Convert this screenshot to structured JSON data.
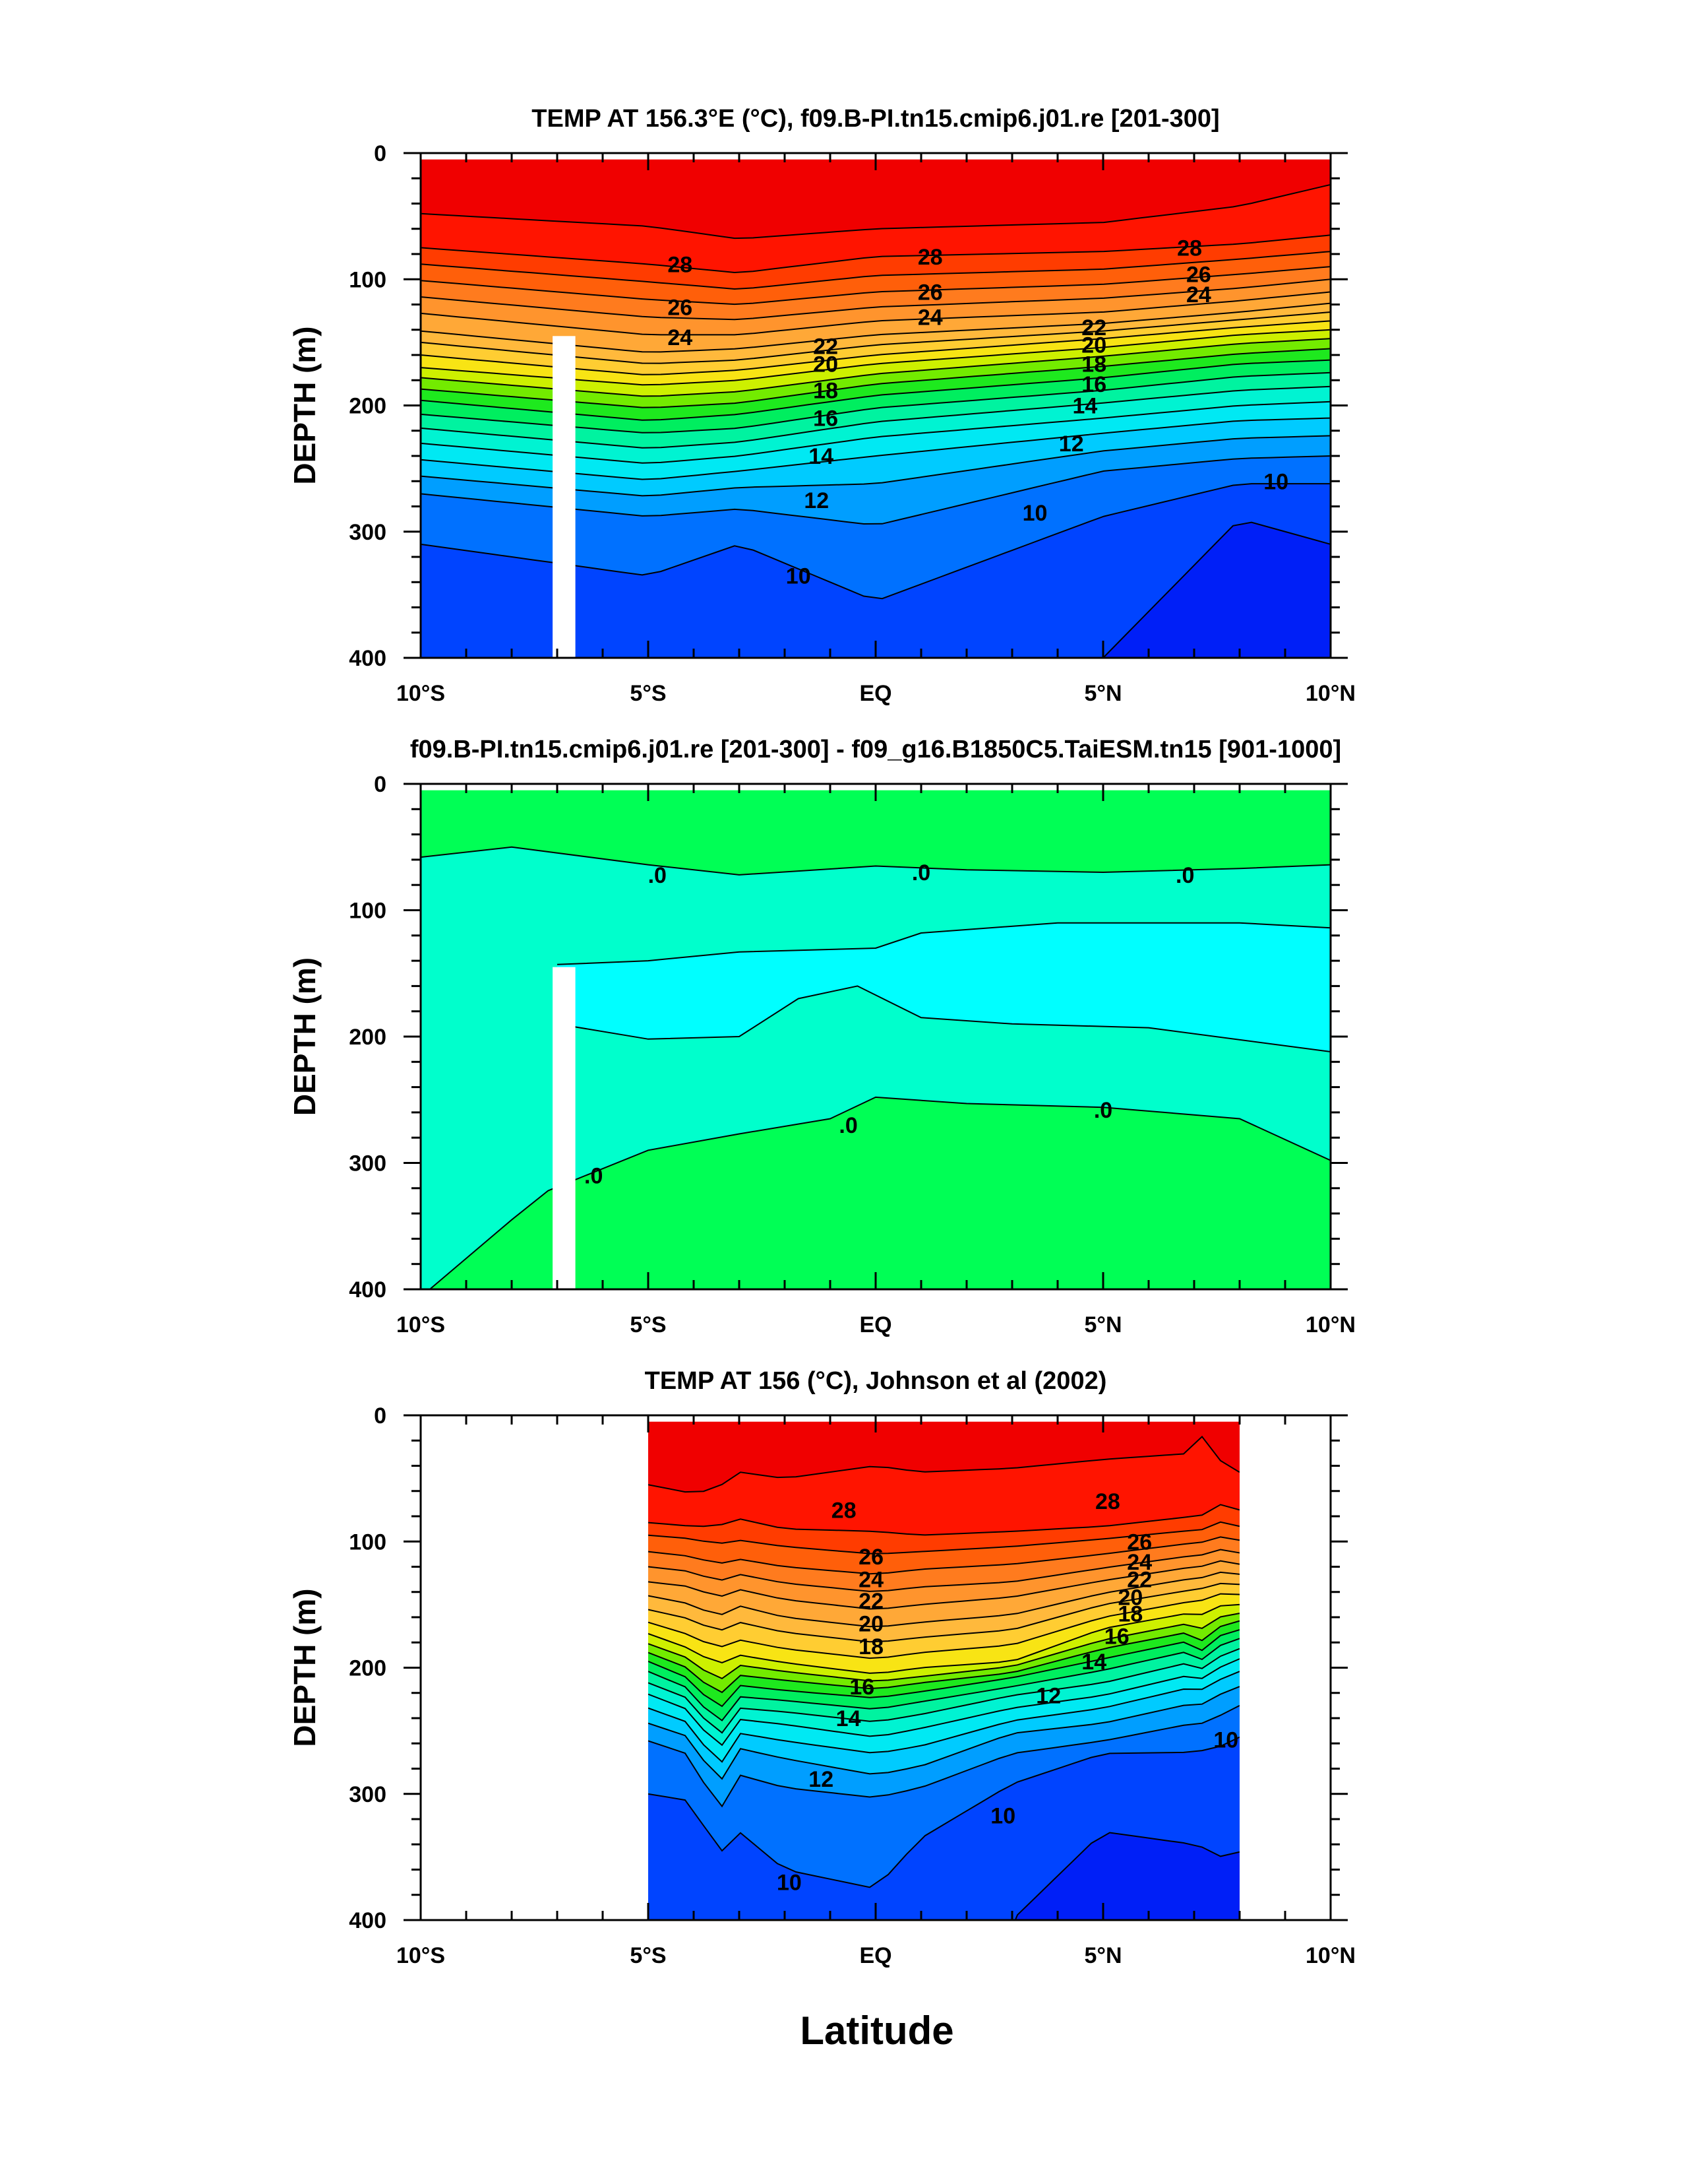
{
  "figure": {
    "xlabel": "Latitude"
  },
  "chart_data": [
    {
      "type": "heatmap",
      "title": "TEMP AT 156.3°E (°C), f09.B-PI.tn15.cmip6.j01.re [201-300]",
      "ylabel": "DEPTH (m)",
      "xlabel": "Latitude",
      "xlim": [
        -10,
        10
      ],
      "ylim": [
        400,
        0
      ],
      "x_ticks": [
        "10°S",
        "5°S",
        "EQ",
        "5°N",
        "10°N"
      ],
      "y_ticks": [
        "0",
        "100",
        "200",
        "300",
        "400"
      ],
      "missing_column": {
        "x_from": -7.1,
        "x_to": -6.6,
        "depth_from": 145,
        "depth_to": 400
      },
      "contour_interval": 1,
      "latitudes": [
        -10,
        -5,
        -3,
        0,
        5,
        8,
        10
      ],
      "isotherm_depth_m": {
        "29": [
          48,
          58,
          68,
          60,
          55,
          42,
          25
        ],
        "28": [
          75,
          88,
          95,
          82,
          78,
          72,
          65
        ],
        "27": [
          88,
          102,
          108,
          97,
          92,
          84,
          78
        ],
        "26": [
          101,
          116,
          120,
          110,
          104,
          96,
          90
        ],
        "25": [
          114,
          130,
          132,
          122,
          115,
          107,
          100
        ],
        "24": [
          127,
          144,
          144,
          133,
          126,
          117,
          110
        ],
        "23": [
          141,
          158,
          155,
          144,
          135,
          126,
          119
        ],
        "22": [
          150,
          167,
          164,
          152,
          141,
          132,
          126
        ],
        "21": [
          160,
          176,
          172,
          160,
          147,
          138,
          133
        ],
        "20": [
          170,
          184,
          180,
          167,
          154,
          144,
          140
        ],
        "19": [
          178,
          193,
          189,
          175,
          161,
          151,
          147
        ],
        "18": [
          187,
          202,
          198,
          183,
          169,
          159,
          155
        ],
        "17": [
          196,
          212,
          207,
          192,
          178,
          167,
          164
        ],
        "16": [
          207,
          222,
          218,
          202,
          188,
          177,
          174
        ],
        "15": [
          218,
          234,
          229,
          213,
          198,
          188,
          185
        ],
        "14": [
          230,
          246,
          240,
          225,
          210,
          200,
          197
        ],
        "13": [
          243,
          259,
          252,
          240,
          222,
          212,
          210
        ],
        "12": [
          256,
          272,
          265,
          262,
          236,
          226,
          224
        ],
        "11": [
          270,
          288,
          282,
          295,
          252,
          242,
          240
        ],
        "10": [
          310,
          335,
          310,
          355,
          288,
          262,
          262
        ],
        "9": [
          999,
          999,
          999,
          999,
          400,
          290,
          310
        ]
      },
      "contour_labels": [
        {
          "text": "28",
          "lat": -4.3,
          "depth": 88
        },
        {
          "text": "28",
          "lat": 1.2,
          "depth": 82
        },
        {
          "text": "28",
          "lat": 6.9,
          "depth": 75
        },
        {
          "text": "26",
          "lat": -4.3,
          "depth": 122
        },
        {
          "text": "26",
          "lat": 1.2,
          "depth": 110
        },
        {
          "text": "26",
          "lat": 7.1,
          "depth": 96
        },
        {
          "text": "24",
          "lat": -4.3,
          "depth": 146
        },
        {
          "text": "24",
          "lat": 1.2,
          "depth": 130
        },
        {
          "text": "24",
          "lat": 7.1,
          "depth": 112
        },
        {
          "text": "22",
          "lat": -1.1,
          "depth": 153
        },
        {
          "text": "22",
          "lat": 4.8,
          "depth": 138
        },
        {
          "text": "20",
          "lat": -1.1,
          "depth": 167
        },
        {
          "text": "20",
          "lat": 4.8,
          "depth": 152
        },
        {
          "text": "18",
          "lat": -1.1,
          "depth": 188
        },
        {
          "text": "18",
          "lat": 4.8,
          "depth": 167
        },
        {
          "text": "16",
          "lat": -1.1,
          "depth": 210
        },
        {
          "text": "16",
          "lat": 4.8,
          "depth": 183
        },
        {
          "text": "14",
          "lat": -1.2,
          "depth": 240
        },
        {
          "text": "14",
          "lat": 4.6,
          "depth": 200
        },
        {
          "text": "12",
          "lat": -1.3,
          "depth": 275
        },
        {
          "text": "12",
          "lat": 4.3,
          "depth": 230
        },
        {
          "text": "10",
          "lat": 8.8,
          "depth": 260
        },
        {
          "text": "10",
          "lat": 3.5,
          "depth": 285
        },
        {
          "text": "10",
          "lat": -1.7,
          "depth": 335
        }
      ]
    },
    {
      "type": "heatmap",
      "title": "f09.B-PI.tn15.cmip6.j01.re [201-300] - f09_g16.B1850C5.TaiESM.tn15 [901-1000]",
      "ylabel": "DEPTH (m)",
      "xlabel": "Latitude",
      "xlim": [
        -10,
        10
      ],
      "ylim": [
        400,
        0
      ],
      "x_ticks": [
        "10°S",
        "5°S",
        "EQ",
        "5°N",
        "10°N"
      ],
      "y_ticks": [
        "0",
        "100",
        "200",
        "300",
        "400"
      ],
      "missing_column": {
        "x_from": -7.1,
        "x_to": -6.6,
        "depth_from": 145,
        "depth_to": 400
      },
      "regions": [
        {
          "name": "near zero (upper)",
          "color": "#00ff55"
        },
        {
          "name": "small negative",
          "color": "#00ffcc"
        },
        {
          "name": "larger negative",
          "color": "#00ffff"
        },
        {
          "name": "near zero (lower)",
          "color": "#00ff55"
        }
      ],
      "contour_labels": [
        {
          "text": ".0",
          "lat": -4.8,
          "depth": 72
        },
        {
          "text": ".0",
          "lat": 1.0,
          "depth": 70
        },
        {
          "text": ".0",
          "lat": 6.8,
          "depth": 72
        },
        {
          "text": ".0",
          "lat": -6.2,
          "depth": 310
        },
        {
          "text": ".0",
          "lat": -0.6,
          "depth": 270
        },
        {
          "text": ".0",
          "lat": 5.0,
          "depth": 258
        }
      ]
    },
    {
      "type": "heatmap",
      "title": "TEMP AT 156 (°C), Johnson et al (2002)",
      "ylabel": "DEPTH (m)",
      "xlabel": "Latitude",
      "xlim": [
        -10,
        10
      ],
      "ylim": [
        400,
        0
      ],
      "data_lat_range": [
        -5,
        8
      ],
      "x_ticks": [
        "10°S",
        "5°S",
        "EQ",
        "5°N",
        "10°N"
      ],
      "y_ticks": [
        "0",
        "100",
        "200",
        "300",
        "400"
      ],
      "contour_interval": 1,
      "latitudes": [
        -5,
        -4,
        -3.5,
        -3,
        -2,
        0,
        1,
        3,
        5,
        7,
        7.4,
        7.6,
        8
      ],
      "isotherm_depth_m": {
        "29": [
          55,
          62,
          58,
          45,
          50,
          40,
          45,
          42,
          35,
          30,
          0,
          40,
          45
        ],
        "28": [
          85,
          88,
          88,
          82,
          90,
          92,
          95,
          92,
          88,
          80,
          78,
          70,
          75
        ],
        "27": [
          95,
          98,
          102,
          99,
          104,
          110,
          108,
          104,
          98,
          91,
          90,
          84,
          88
        ],
        "26": [
          108,
          112,
          118,
          114,
          120,
          126,
          122,
          118,
          110,
          101,
          100,
          96,
          99
        ],
        "25": [
          120,
          124,
          132,
          126,
          133,
          140,
          136,
          132,
          121,
          111,
          110,
          106,
          109
        ],
        "24": [
          132,
          136,
          145,
          138,
          146,
          154,
          150,
          144,
          131,
          120,
          119,
          115,
          118
        ],
        "23": [
          143,
          150,
          160,
          151,
          160,
          168,
          164,
          158,
          141,
          129,
          128,
          124,
          126
        ],
        "22": [
          154,
          162,
          172,
          164,
          172,
          180,
          176,
          170,
          150,
          138,
          136,
          133,
          134
        ],
        "21": [
          164,
          175,
          185,
          178,
          185,
          193,
          188,
          182,
          160,
          147,
          146,
          141,
          142
        ],
        "20": [
          173,
          186,
          198,
          190,
          196,
          205,
          200,
          195,
          169,
          156,
          160,
          150,
          150
        ],
        "19": [
          181,
          194,
          212,
          198,
          203,
          211,
          207,
          199,
          178,
          164,
          175,
          158,
          157
        ],
        "18": [
          188,
          202,
          224,
          206,
          210,
          217,
          212,
          204,
          185,
          171,
          188,
          165,
          163
        ],
        "17": [
          195,
          210,
          236,
          214,
          218,
          224,
          219,
          208,
          193,
          178,
          197,
          172,
          170
        ],
        "16": [
          203,
          218,
          248,
          223,
          226,
          233,
          227,
          215,
          202,
          186,
          203,
          180,
          177
        ],
        "15": [
          212,
          226,
          258,
          232,
          235,
          243,
          237,
          222,
          212,
          195,
          208,
          189,
          185
        ],
        "14": [
          221,
          235,
          268,
          241,
          245,
          255,
          248,
          232,
          222,
          205,
          213,
          198,
          193
        ],
        "13": [
          232,
          245,
          282,
          252,
          258,
          268,
          262,
          242,
          232,
          215,
          220,
          208,
          203
        ],
        "12": [
          244,
          256,
          296,
          264,
          272,
          285,
          278,
          252,
          244,
          228,
          230,
          220,
          215
        ],
        "11": [
          258,
          270,
          318,
          285,
          295,
          303,
          295,
          268,
          258,
          244,
          244,
          237,
          230
        ],
        "10": [
          300,
          306,
          350,
          330,
          360,
          375,
          335,
          292,
          268,
          267,
          264,
          262,
          255
        ],
        "9": [
          999,
          999,
          372,
          999,
          999,
          999,
          999,
          400,
          330,
          340,
          345,
          350,
          346
        ]
      },
      "contour_labels": [
        {
          "text": "28",
          "lat": -0.7,
          "depth": 75
        },
        {
          "text": "28",
          "lat": 5.1,
          "depth": 68
        },
        {
          "text": "26",
          "lat": -0.1,
          "depth": 112
        },
        {
          "text": "26",
          "lat": 5.8,
          "depth": 100
        },
        {
          "text": "24",
          "lat": -0.1,
          "depth": 130
        },
        {
          "text": "24",
          "lat": 5.8,
          "depth": 116
        },
        {
          "text": "22",
          "lat": -0.1,
          "depth": 147
        },
        {
          "text": "22",
          "lat": 5.8,
          "depth": 130
        },
        {
          "text": "20",
          "lat": -0.1,
          "depth": 165
        },
        {
          "text": "20",
          "lat": 5.6,
          "depth": 144
        },
        {
          "text": "18",
          "lat": -0.1,
          "depth": 183
        },
        {
          "text": "18",
          "lat": 5.6,
          "depth": 157
        },
        {
          "text": "16",
          "lat": -0.3,
          "depth": 215
        },
        {
          "text": "16",
          "lat": 5.3,
          "depth": 175
        },
        {
          "text": "14",
          "lat": -0.6,
          "depth": 240
        },
        {
          "text": "14",
          "lat": 4.8,
          "depth": 195
        },
        {
          "text": "12",
          "lat": 3.8,
          "depth": 222
        },
        {
          "text": "12",
          "lat": -1.2,
          "depth": 288
        },
        {
          "text": "10",
          "lat": 7.7,
          "depth": 257
        },
        {
          "text": "10",
          "lat": 2.8,
          "depth": 317
        },
        {
          "text": "10",
          "lat": -1.9,
          "depth": 370
        }
      ]
    }
  ]
}
